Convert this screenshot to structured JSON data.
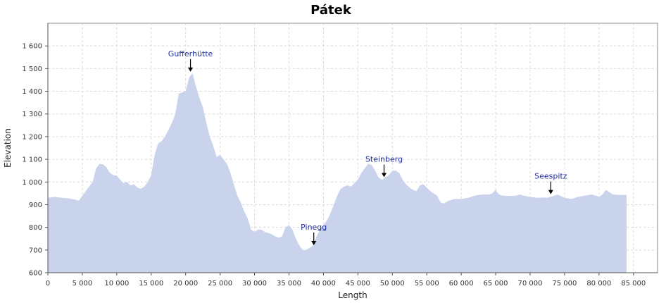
{
  "chart_data": {
    "type": "area",
    "title": "Pátek",
    "xlabel": "Length",
    "ylabel": "Elevation",
    "xlim": [
      0,
      88500
    ],
    "ylim": [
      600,
      1700
    ],
    "grid": true,
    "fill_color": "#c9d3ec",
    "x_ticks": [
      0,
      5000,
      10000,
      15000,
      20000,
      25000,
      30000,
      35000,
      40000,
      45000,
      50000,
      55000,
      60000,
      65000,
      70000,
      75000,
      80000,
      85000
    ],
    "x_tick_labels": [
      "0",
      "5 000",
      "10 000",
      "15 000",
      "20 000",
      "25 000",
      "30 000",
      "35 000",
      "40 000",
      "45 000",
      "50 000",
      "55 000",
      "60 000",
      "65 000",
      "70 000",
      "75 000",
      "80 000",
      "85 000"
    ],
    "y_ticks": [
      600,
      700,
      800,
      900,
      1000,
      1100,
      1200,
      1300,
      1400,
      1500,
      1600
    ],
    "y_tick_labels": [
      "600",
      "700",
      "800",
      "900",
      "1 000",
      "1 100",
      "1 200",
      "1 300",
      "1 400",
      "1 500",
      "1 600"
    ],
    "x": [
      0,
      1000,
      2000,
      3000,
      4000,
      4500,
      5500,
      6500,
      7000,
      7500,
      8000,
      8500,
      9000,
      9500,
      10000,
      10500,
      11000,
      11500,
      12000,
      12500,
      13000,
      13500,
      14000,
      14500,
      15000,
      15500,
      16000,
      16500,
      17000,
      17500,
      18000,
      18500,
      19000,
      19500,
      20000,
      20500,
      21000,
      21500,
      22000,
      22500,
      23000,
      23500,
      24000,
      24500,
      25000,
      25500,
      26000,
      26500,
      27000,
      27500,
      28000,
      28500,
      29000,
      29500,
      30000,
      30500,
      31000,
      31500,
      32000,
      32500,
      33000,
      33500,
      34000,
      34500,
      35000,
      35500,
      36000,
      36500,
      37000,
      37500,
      38000,
      38500,
      39000,
      39500,
      40000,
      40500,
      41000,
      41500,
      42000,
      42500,
      43000,
      43500,
      44000,
      44500,
      45000,
      45500,
      46000,
      46500,
      47000,
      47500,
      48000,
      48500,
      49000,
      49500,
      50000,
      50500,
      51000,
      51500,
      52000,
      52500,
      53000,
      53500,
      54000,
      54500,
      55000,
      55500,
      56000,
      56500,
      57000,
      57500,
      58000,
      58500,
      59000,
      60000,
      61000,
      62000,
      63000,
      64000,
      64500,
      65000,
      65500,
      66000,
      67000,
      68000,
      68500,
      69000,
      70000,
      71000,
      72000,
      72500,
      73000,
      73500,
      74000,
      75000,
      76000,
      77000,
      78000,
      79000,
      80000,
      80500,
      81000,
      81500,
      82000,
      83000,
      84000
    ],
    "y": [
      930,
      935,
      930,
      928,
      922,
      918,
      960,
      1000,
      1060,
      1080,
      1078,
      1065,
      1040,
      1030,
      1028,
      1010,
      995,
      1000,
      985,
      990,
      975,
      970,
      980,
      1000,
      1030,
      1120,
      1170,
      1180,
      1200,
      1230,
      1260,
      1300,
      1390,
      1395,
      1400,
      1460,
      1480,
      1420,
      1370,
      1330,
      1260,
      1200,
      1160,
      1110,
      1120,
      1100,
      1080,
      1040,
      990,
      940,
      910,
      870,
      840,
      790,
      780,
      790,
      790,
      780,
      775,
      770,
      760,
      755,
      760,
      800,
      810,
      790,
      750,
      720,
      700,
      700,
      710,
      720,
      760,
      790,
      810,
      830,
      860,
      900,
      940,
      970,
      980,
      985,
      980,
      995,
      1010,
      1040,
      1060,
      1080,
      1075,
      1050,
      1020,
      1010,
      1020,
      1030,
      1050,
      1050,
      1040,
      1010,
      990,
      975,
      965,
      960,
      985,
      990,
      975,
      960,
      950,
      940,
      910,
      905,
      915,
      920,
      925,
      925,
      930,
      940,
      945,
      945,
      950,
      965,
      945,
      940,
      938,
      940,
      945,
      940,
      935,
      930,
      932,
      930,
      935,
      940,
      945,
      930,
      925,
      935,
      940,
      945,
      935,
      945,
      965,
      955,
      945,
      943,
      943
    ],
    "annotations": [
      {
        "label": "Gufferhütte",
        "x": 20700,
        "y": 1480
      },
      {
        "label": "Pinegg",
        "x": 38600,
        "y": 715
      },
      {
        "label": "Steinberg",
        "x": 48800,
        "y": 1015
      },
      {
        "label": "Seespitz",
        "x": 73000,
        "y": 940
      }
    ]
  }
}
